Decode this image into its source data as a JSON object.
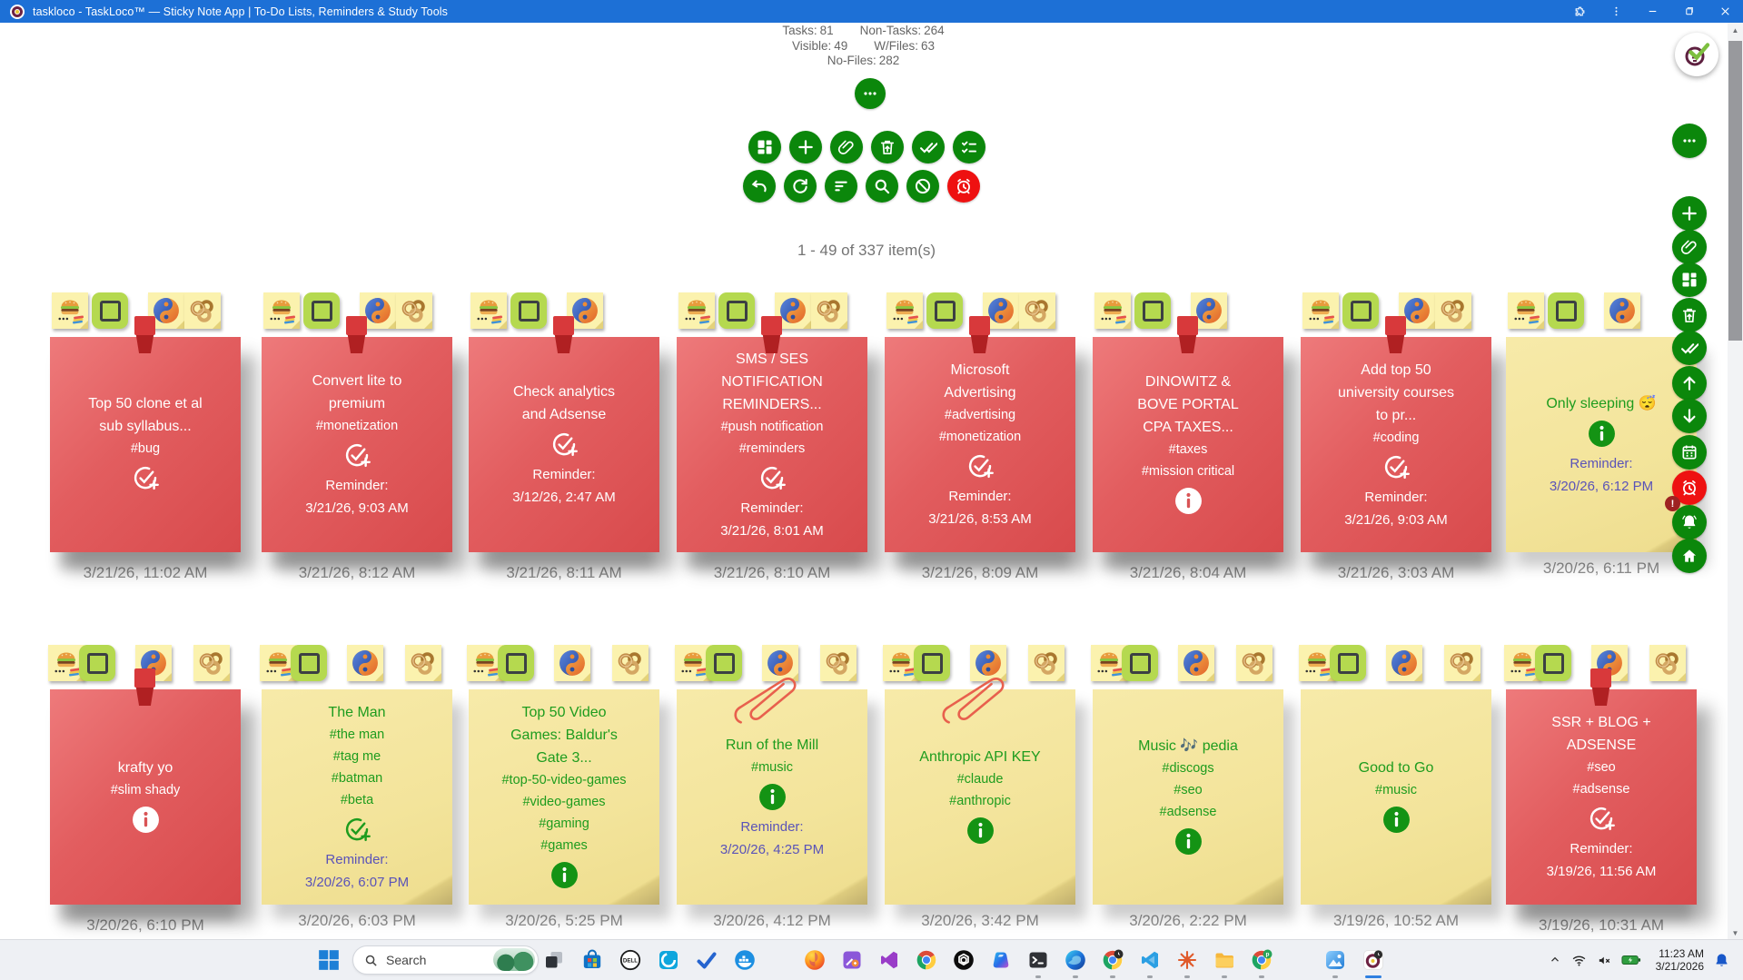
{
  "window": {
    "title": "taskloco - TaskLoco™ — Sticky Note App | To-Do Lists, Reminders & Study Tools",
    "controls": [
      "extensions",
      "menu",
      "minimize",
      "restore",
      "close"
    ]
  },
  "header": {
    "stats": [
      {
        "label": "Tasks:",
        "value": "81"
      },
      {
        "label": "Non-Tasks:",
        "value": "264"
      },
      {
        "label": "Visible:",
        "value": "49"
      },
      {
        "label": "W/Files:",
        "value": "63"
      },
      {
        "label": "No-Files:",
        "value": "282"
      }
    ],
    "pagination": "1 - 49 of 337 item(s)"
  },
  "toolbar": {
    "more": "more-options",
    "row1": [
      "layout",
      "add",
      "attach",
      "archive",
      "complete-all",
      "checklist"
    ],
    "row2": [
      "undo",
      "refresh",
      "filter",
      "search",
      "block",
      "alarm"
    ]
  },
  "sidebar": {
    "buttons": [
      "more",
      "add",
      "attach",
      "layout",
      "archive",
      "complete-all",
      "up",
      "down",
      "calendar",
      "alarm",
      "notifications",
      "home"
    ],
    "alert_badge": "!"
  },
  "notes": {
    "reminder_label": "Reminder:",
    "rows": [
      [
        {
          "color": "red",
          "tiles": [
            "burger",
            "checkbox",
            "yinyang",
            "rings"
          ],
          "pin": true,
          "title": [
            "Top 50 clone et al",
            "sub syllabus..."
          ],
          "tags": [
            "#bug"
          ],
          "action": "task-add",
          "reminder": null,
          "date": "3/21/26, 11:02 AM"
        },
        {
          "color": "red",
          "tiles": [
            "burger",
            "checkbox",
            "yinyang",
            "rings"
          ],
          "pin": true,
          "title": [
            "Convert lite to",
            "premium"
          ],
          "tags": [
            "#monetization"
          ],
          "action": "task-add",
          "reminder": "3/21/26, 9:03 AM",
          "date": "3/21/26, 8:12 AM"
        },
        {
          "color": "red",
          "tiles": [
            "burger",
            "checkbox",
            "yinyang"
          ],
          "pin": true,
          "title": [
            "Check analytics",
            "and Adsense"
          ],
          "tags": [],
          "action": "task-add",
          "reminder": "3/12/26, 2:47 AM",
          "date": "3/21/26, 8:11 AM"
        },
        {
          "color": "red",
          "tiles": [
            "burger",
            "checkbox",
            "yinyang",
            "rings"
          ],
          "pin": true,
          "title": [
            "SMS / SES",
            "NOTIFICATION",
            "REMINDERS..."
          ],
          "tags": [
            "#push notification",
            "#reminders"
          ],
          "action": "task-add",
          "reminder": "3/21/26, 8:01 AM",
          "date": "3/21/26, 8:10 AM"
        },
        {
          "color": "red",
          "tiles": [
            "burger",
            "checkbox",
            "yinyang",
            "rings"
          ],
          "pin": true,
          "title": [
            "Microsoft",
            "Advertising"
          ],
          "tags": [
            "#advertising",
            "#monetization"
          ],
          "action": "task-add",
          "reminder": "3/21/26, 8:53 AM",
          "date": "3/21/26, 8:09 AM"
        },
        {
          "color": "red",
          "tiles": [
            "burger",
            "checkbox",
            "yinyang"
          ],
          "pin": true,
          "title": [
            "DINOWITZ &",
            "BOVE PORTAL",
            "CPA TAXES..."
          ],
          "tags": [
            "#taxes",
            "#mission critical"
          ],
          "action": "info",
          "reminder": null,
          "date": "3/21/26, 8:04 AM"
        },
        {
          "color": "red",
          "tiles": [
            "burger",
            "checkbox",
            "yinyang",
            "rings"
          ],
          "pin": true,
          "title": [
            "Add top 50",
            "university courses",
            "to pr..."
          ],
          "tags": [
            "#coding"
          ],
          "action": "task-add",
          "reminder": "3/21/26, 9:03 AM",
          "date": "3/21/26, 3:03 AM"
        },
        {
          "color": "yellow",
          "tiles": [
            "burger",
            "checkbox",
            "yinyang"
          ],
          "pin": false,
          "title": [
            "Only sleeping 😴"
          ],
          "tags": [],
          "action": "info",
          "reminder": "3/20/26, 6:12 PM",
          "date": "3/20/26, 6:11 PM"
        }
      ],
      [
        {
          "color": "red",
          "tiles": [
            "burger",
            "checkbox",
            "yinyang",
            "rings"
          ],
          "pin": true,
          "title": [
            "krafty yo"
          ],
          "tags": [
            "#slim shady"
          ],
          "action": "info",
          "reminder": null,
          "date": "3/20/26, 6:10 PM"
        },
        {
          "color": "yellow",
          "tiles": [
            "burger",
            "checkbox",
            "yinyang",
            "rings"
          ],
          "pin": false,
          "title": [
            "The Man"
          ],
          "tags": [
            "#the man",
            "#tag me",
            "#batman",
            "#beta"
          ],
          "action": "task-add",
          "reminder": "3/20/26, 6:07 PM",
          "date": "3/20/26, 6:03 PM"
        },
        {
          "color": "yellow",
          "tiles": [
            "burger",
            "checkbox",
            "yinyang",
            "rings"
          ],
          "pin": false,
          "title": [
            "Top 50 Video",
            "Games: Baldur's",
            "Gate 3..."
          ],
          "tags": [
            "#top-50-video-games",
            "#video-games",
            "#gaming",
            "#games"
          ],
          "action": "info",
          "reminder": null,
          "date": "3/20/26, 5:25 PM"
        },
        {
          "color": "yellow",
          "tiles": [
            "burger",
            "checkbox",
            "yinyang",
            "rings"
          ],
          "pin": false,
          "clip": true,
          "title": [
            "Run of the Mill"
          ],
          "tags": [
            "#music"
          ],
          "action": "info",
          "reminder": "3/20/26, 4:25 PM",
          "date": "3/20/26, 4:12 PM"
        },
        {
          "color": "yellow",
          "tiles": [
            "burger",
            "checkbox",
            "yinyang",
            "rings"
          ],
          "pin": false,
          "clip": true,
          "title": [
            "Anthropic API KEY"
          ],
          "tags": [
            "#claude",
            "#anthropic"
          ],
          "action": "info",
          "reminder": null,
          "date": "3/20/26, 3:42 PM"
        },
        {
          "color": "yellow",
          "tiles": [
            "burger",
            "checkbox",
            "yinyang",
            "rings"
          ],
          "pin": false,
          "title": [
            "Music 🎶 pedia"
          ],
          "tags": [
            "#discogs",
            "#seo",
            "#adsense"
          ],
          "action": "info",
          "reminder": null,
          "date": "3/20/26, 2:22 PM"
        },
        {
          "color": "yellow",
          "tiles": [
            "burger",
            "checkbox",
            "yinyang",
            "rings"
          ],
          "pin": false,
          "title": [
            "Good to Go"
          ],
          "tags": [
            "#music"
          ],
          "action": "info",
          "reminder": null,
          "date": "3/19/26, 10:52 AM"
        },
        {
          "color": "red",
          "tiles": [
            "burger",
            "checkbox",
            "yinyang",
            "rings"
          ],
          "pin": true,
          "title": [
            "SSR + BLOG +",
            "ADSENSE"
          ],
          "tags": [
            "#seo",
            "#adsense"
          ],
          "action": "task-add",
          "reminder": "3/19/26, 11:56 AM",
          "date": "3/19/26, 10:31 AM"
        }
      ]
    ]
  },
  "taskbar": {
    "search_label": "Search",
    "apps": [
      {
        "name": "task-view"
      },
      {
        "name": "store"
      },
      {
        "name": "dell"
      },
      {
        "name": "alexa"
      },
      {
        "name": "todo"
      },
      {
        "name": "docker"
      },
      {
        "name": "firefox"
      },
      {
        "name": "dev-home"
      },
      {
        "name": "visual-studio"
      },
      {
        "name": "chrome"
      },
      {
        "name": "chatgpt"
      },
      {
        "name": "copilot"
      },
      {
        "name": "terminal",
        "running": true
      },
      {
        "name": "edge",
        "running": true
      },
      {
        "name": "chrome-clock",
        "running": true
      },
      {
        "name": "vscode",
        "running": true
      },
      {
        "name": "starburst",
        "running": true
      },
      {
        "name": "file-explorer",
        "running": true
      },
      {
        "name": "chrome-profile",
        "running": true
      },
      {
        "name": "photos",
        "running": true
      },
      {
        "name": "taskloco",
        "active": true
      }
    ],
    "tray": {
      "time": "11:23 AM",
      "date": "3/21/2026"
    }
  },
  "colors": {
    "titlebar": "#1d70d6",
    "accent_green": "#0b870b",
    "alert_red": "#ee1111",
    "note_red": "#e25d5f",
    "note_yellow": "#f3e49b",
    "tag_green": "#1e9c1e",
    "reminder_purple": "#5a53b8"
  }
}
